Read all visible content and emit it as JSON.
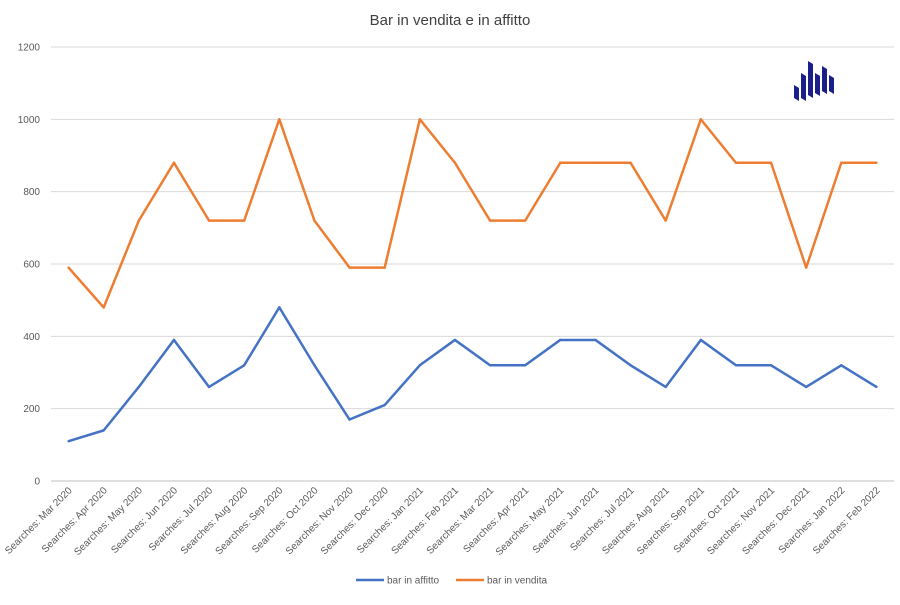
{
  "chart_data": {
    "type": "line",
    "title": "Bar in vendita e in affitto",
    "xlabel": "",
    "ylabel": "",
    "ylim": [
      0,
      1200
    ],
    "yticks": [
      0,
      200,
      400,
      600,
      800,
      1000,
      1200
    ],
    "grid": true,
    "legend_position": "bottom",
    "categories": [
      "Searches: Mar 2020",
      "Searches: Apr 2020",
      "Searches: May 2020",
      "Searches: Jun 2020",
      "Searches: Jul 2020",
      "Searches: Aug 2020",
      "Searches: Sep 2020",
      "Searches: Oct 2020",
      "Searches: Nov 2020",
      "Searches: Dec 2020",
      "Searches: Jan 2021",
      "Searches: Feb 2021",
      "Searches: Mar 2021",
      "Searches: Apr 2021",
      "Searches: May 2021",
      "Searches: Jun 2021",
      "Searches: Jul 2021",
      "Searches: Aug 2021",
      "Searches: Sep 2021",
      "Searches: Oct 2021",
      "Searches: Nov 2021",
      "Searches: Dec 2021",
      "Searches: Jan 2022",
      "Searches: Feb 2022"
    ],
    "series": [
      {
        "name": "bar in affitto",
        "color": "#4472c4",
        "values": [
          110,
          140,
          260,
          390,
          260,
          320,
          480,
          320,
          170,
          210,
          320,
          390,
          320,
          320,
          390,
          390,
          320,
          260,
          390,
          320,
          320,
          260,
          320,
          260
        ]
      },
      {
        "name": "bar in vendita",
        "color": "#ed7d31",
        "values": [
          590,
          480,
          720,
          880,
          720,
          720,
          1000,
          720,
          590,
          590,
          1000,
          880,
          720,
          720,
          880,
          880,
          880,
          720,
          1000,
          880,
          880,
          590,
          880,
          880
        ]
      }
    ]
  },
  "logo": {
    "icon": "bar-chart-logo-icon",
    "color": "#1a1f8c"
  }
}
